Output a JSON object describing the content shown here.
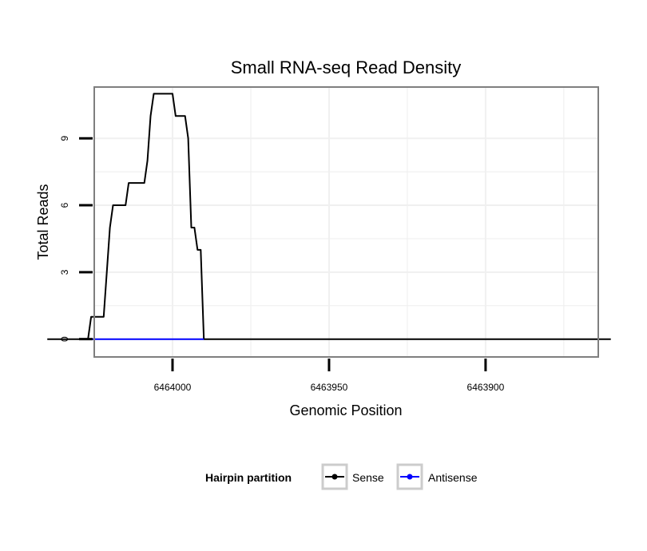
{
  "chart_data": {
    "type": "line",
    "title": "Small RNA-seq Read Density",
    "xlabel": "Genomic Position",
    "ylabel": "Total Reads",
    "xlim": [
      6464025,
      6463864
    ],
    "x_reversed": true,
    "ylim": [
      -0.8,
      11.3
    ],
    "x_ticks": [
      6464000,
      6463950,
      6463900
    ],
    "x_tick_labels": [
      "6464000",
      "6463950",
      "6463900"
    ],
    "y_ticks": [
      0,
      3,
      6,
      9
    ],
    "y_tick_labels": [
      "0",
      "3",
      "6",
      "9"
    ],
    "grid": true,
    "legend": {
      "title": "Hairpin partition",
      "placement": "bottom",
      "entries": [
        "Sense",
        "Antisense"
      ]
    },
    "series": [
      {
        "name": "Sense",
        "color": "#000000",
        "points": [
          [
            6464040,
            0
          ],
          [
            6464027,
            0
          ],
          [
            6464026,
            1
          ],
          [
            6464022,
            1
          ],
          [
            6464021,
            3
          ],
          [
            6464020,
            5
          ],
          [
            6464019,
            6
          ],
          [
            6464015,
            6
          ],
          [
            6464014,
            7
          ],
          [
            6464009,
            7
          ],
          [
            6464008,
            8
          ],
          [
            6464007,
            10
          ],
          [
            6464006,
            11
          ],
          [
            6464000,
            11
          ],
          [
            6463999,
            10
          ],
          [
            6463996,
            10
          ],
          [
            6463995,
            9
          ],
          [
            6463994,
            5
          ],
          [
            6463993,
            5
          ],
          [
            6463992,
            4
          ],
          [
            6463991,
            4
          ],
          [
            6463990,
            0
          ],
          [
            6463860,
            0
          ]
        ]
      },
      {
        "name": "Antisense",
        "color": "#0000ff",
        "points": [
          [
            6464027,
            0
          ],
          [
            6463990,
            0
          ]
        ]
      }
    ]
  }
}
